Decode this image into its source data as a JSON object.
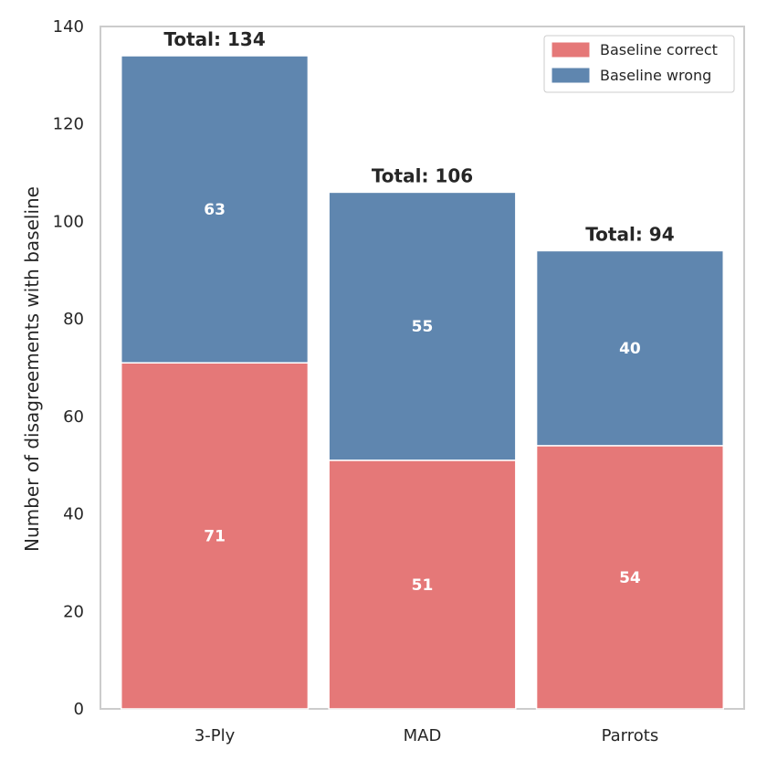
{
  "chart_data": {
    "type": "bar",
    "stacked": true,
    "categories": [
      "3-Ply",
      "MAD",
      "Parrots"
    ],
    "series": [
      {
        "name": "Baseline correct",
        "values": [
          71,
          51,
          54
        ],
        "color": "#e57878"
      },
      {
        "name": "Baseline wrong",
        "values": [
          63,
          55,
          40
        ],
        "color": "#5f86af"
      }
    ],
    "totals": [
      134,
      106,
      94
    ],
    "total_prefix": "Total: ",
    "xlabel": "",
    "ylabel": "Number of disagreements with baseline",
    "ylim": [
      0,
      140
    ],
    "yticks": [
      0,
      20,
      40,
      60,
      80,
      100,
      120,
      140
    ],
    "grid": false,
    "legend_position": "top-right"
  },
  "colors": {
    "axes_frame": "#cccccc",
    "bar_edge": "#ffffff",
    "text": "#262626"
  }
}
